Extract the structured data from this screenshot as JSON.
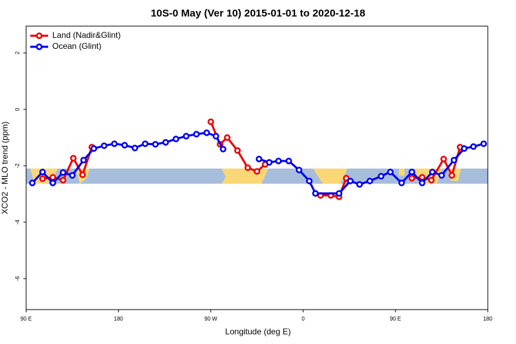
{
  "chart_data": {
    "type": "line",
    "title": "10S-0 May (Ver 10)   2015-01-01 to 2020-12-18",
    "x_label": "Longitude (deg E)",
    "y_label": "XCO2 - MLO trend (ppm)",
    "xlim": [
      90,
      540
    ],
    "ylim": [
      -7.1,
      2.95
    ],
    "xticks": [
      {
        "value": 90,
        "label": "90 E"
      },
      180,
      {
        "value": 270,
        "label": "90 W"
      },
      {
        "value": 360,
        "label": "0"
      },
      {
        "value": 450,
        "label": "90 E"
      },
      {
        "value": 540,
        "label": "180"
      }
    ],
    "yticks": [
      -6,
      -4,
      -2,
      0,
      2
    ],
    "legend": "top-left",
    "series": [
      {
        "name": "Land (Nadir&Glint)",
        "color": "#ee0000",
        "x": [
          106,
          116,
          126,
          136,
          145,
          154,
          null,
          270,
          279,
          286,
          296,
          306,
          315,
          323,
          null,
          377,
          387,
          395,
          402,
          null,
          466,
          476,
          485,
          497,
          505,
          513
        ],
        "values": [
          -2.46,
          -2.41,
          -2.51,
          -1.73,
          -2.32,
          -1.34,
          null,
          -0.44,
          -1.24,
          -1.0,
          -1.46,
          -2.07,
          -2.2,
          -1.95,
          null,
          -3.05,
          -3.05,
          -3.1,
          -2.44,
          null,
          -2.44,
          -2.41,
          -2.51,
          -1.76,
          -2.34,
          -1.34
        ]
      },
      {
        "name": "Ocean (Glint)",
        "color": "#0000ee",
        "x": [
          96,
          106,
          116,
          126,
          135,
          146,
          156,
          166,
          176,
          186,
          196,
          206,
          216,
          226,
          236,
          246,
          256,
          266,
          275,
          282,
          null,
          317,
          327,
          336,
          346,
          356,
          366,
          372,
          395,
          406,
          415,
          425,
          436,
          445,
          456,
          466,
          476,
          486,
          495,
          507,
          517,
          526,
          536
        ],
        "values": [
          -2.61,
          -2.22,
          -2.61,
          -2.24,
          -2.34,
          -1.8,
          -1.39,
          -1.29,
          -1.22,
          -1.27,
          -1.37,
          -1.22,
          -1.24,
          -1.17,
          -1.05,
          -0.95,
          -0.88,
          -0.83,
          -0.95,
          -1.41,
          null,
          -1.76,
          -1.88,
          -1.83,
          -1.83,
          -2.15,
          -2.54,
          -2.98,
          -2.98,
          -2.54,
          -2.66,
          -2.54,
          -2.37,
          -2.22,
          -2.61,
          -2.22,
          -2.61,
          -2.22,
          -2.34,
          -1.8,
          -1.39,
          -1.32,
          -1.22
        ]
      }
    ]
  }
}
